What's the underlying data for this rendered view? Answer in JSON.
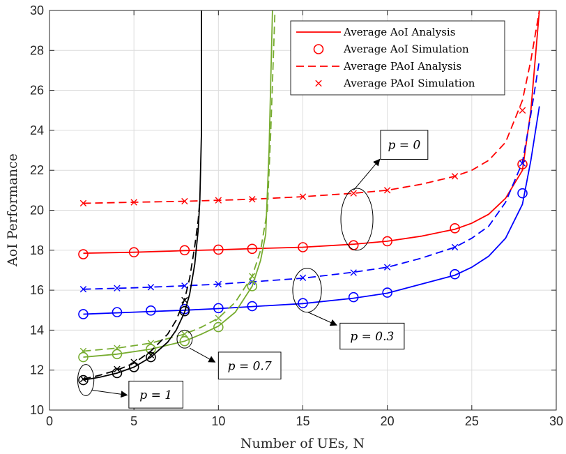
{
  "chart_data": {
    "type": "line",
    "xlabel": "Number of UEs, N",
    "ylabel": "AoI Performance",
    "xlim": [
      0,
      30
    ],
    "ylim": [
      10,
      30
    ],
    "xticks": [
      0,
      5,
      10,
      15,
      20,
      25,
      30
    ],
    "yticks": [
      10,
      12,
      14,
      16,
      18,
      20,
      22,
      24,
      26,
      28,
      30
    ],
    "grid": true,
    "legend": {
      "placement": "top-right",
      "entries": [
        {
          "label": "Average AoI Analysis",
          "style": "solid-line"
        },
        {
          "label": "Average AoI Simulation",
          "style": "circle-marker"
        },
        {
          "label": "Average PAoI Analysis",
          "style": "dashed-line"
        },
        {
          "label": "Average PAoI Simulation",
          "style": "x-marker"
        }
      ]
    },
    "colors": {
      "p0": "#ff0000",
      "p03": "#0000ff",
      "p07": "#77ac30",
      "p1": "#000000"
    },
    "series": [
      {
        "group": "p0",
        "kind": "aoi-analysis",
        "color": "#ff0000",
        "x": [
          2,
          5,
          8,
          10,
          12,
          15,
          18,
          20,
          22,
          24,
          25,
          26,
          27,
          28,
          28.5,
          29
        ],
        "y": [
          17.85,
          17.9,
          17.98,
          18.02,
          18.08,
          18.15,
          18.3,
          18.45,
          18.7,
          19.05,
          19.35,
          19.8,
          20.6,
          22.0,
          25.0,
          30.0
        ]
      },
      {
        "group": "p0",
        "kind": "aoi-simulation",
        "color": "#ff0000",
        "x": [
          2,
          5,
          8,
          10,
          12,
          15,
          18,
          20,
          24,
          28
        ],
        "y": [
          17.8,
          17.9,
          18.0,
          18.03,
          18.07,
          18.15,
          18.25,
          18.45,
          19.1,
          22.3
        ]
      },
      {
        "group": "p0",
        "kind": "paoi-analysis",
        "color": "#ff0000",
        "x": [
          2,
          5,
          8,
          10,
          12,
          15,
          18,
          20,
          22,
          24,
          25,
          26,
          27,
          28,
          28.5,
          29
        ],
        "y": [
          20.35,
          20.4,
          20.45,
          20.5,
          20.55,
          20.68,
          20.85,
          21.0,
          21.3,
          21.7,
          22.0,
          22.5,
          23.4,
          25.5,
          27.5,
          30.0
        ]
      },
      {
        "group": "p0",
        "kind": "paoi-simulation",
        "color": "#ff0000",
        "x": [
          2,
          5,
          8,
          10,
          12,
          15,
          18,
          20,
          24,
          28
        ],
        "y": [
          20.35,
          20.4,
          20.45,
          20.5,
          20.55,
          20.68,
          20.85,
          21.0,
          21.7,
          25.0
        ]
      },
      {
        "group": "p03",
        "kind": "aoi-analysis",
        "color": "#0000ff",
        "x": [
          2,
          5,
          8,
          10,
          12,
          15,
          18,
          20,
          22,
          24,
          25,
          26,
          27,
          28,
          28.5,
          29
        ],
        "y": [
          14.8,
          14.9,
          15.0,
          15.08,
          15.18,
          15.33,
          15.6,
          15.85,
          16.3,
          16.75,
          17.15,
          17.7,
          18.6,
          20.3,
          22.5,
          25.2
        ]
      },
      {
        "group": "p03",
        "kind": "aoi-simulation",
        "color": "#0000ff",
        "x": [
          2,
          4,
          6,
          8,
          10,
          12,
          15,
          18,
          20,
          24,
          28
        ],
        "y": [
          14.8,
          14.9,
          14.98,
          15.05,
          15.1,
          15.2,
          15.35,
          15.65,
          15.88,
          16.8,
          20.85
        ]
      },
      {
        "group": "p03",
        "kind": "paoi-analysis",
        "color": "#0000ff",
        "x": [
          2,
          5,
          8,
          10,
          12,
          15,
          18,
          20,
          22,
          24,
          25,
          26,
          27,
          28,
          28.5,
          29
        ],
        "y": [
          16.05,
          16.12,
          16.22,
          16.3,
          16.42,
          16.6,
          16.9,
          17.15,
          17.6,
          18.15,
          18.6,
          19.2,
          20.4,
          22.4,
          24.8,
          27.5
        ]
      },
      {
        "group": "p03",
        "kind": "paoi-simulation",
        "color": "#0000ff",
        "x": [
          2,
          4,
          6,
          8,
          10,
          12,
          15,
          18,
          20,
          24,
          28
        ],
        "y": [
          16.05,
          16.1,
          16.15,
          16.22,
          16.3,
          16.42,
          16.62,
          16.88,
          17.15,
          18.15,
          22.35
        ]
      },
      {
        "group": "p07",
        "kind": "aoi-analysis",
        "color": "#77ac30",
        "x": [
          2,
          4,
          6,
          8,
          9,
          10,
          11,
          12,
          12.5,
          12.8,
          13.0,
          13.2
        ],
        "y": [
          12.65,
          12.8,
          13.05,
          13.45,
          13.8,
          14.2,
          14.9,
          16.2,
          17.5,
          18.8,
          23.0,
          30.0
        ]
      },
      {
        "group": "p07",
        "kind": "aoi-simulation",
        "color": "#77ac30",
        "x": [
          2,
          4,
          6,
          8,
          10,
          12
        ],
        "y": [
          12.65,
          12.8,
          13.05,
          13.45,
          14.15,
          16.2
        ]
      },
      {
        "group": "p07",
        "kind": "paoi-analysis",
        "color": "#77ac30",
        "x": [
          2,
          4,
          6,
          8,
          9,
          10,
          11,
          12,
          12.5,
          12.9,
          13.1,
          13.35
        ],
        "y": [
          12.95,
          13.1,
          13.35,
          13.8,
          14.15,
          14.6,
          15.4,
          16.7,
          18.0,
          20.0,
          24.0,
          30.0
        ]
      },
      {
        "group": "p07",
        "kind": "paoi-simulation",
        "color": "#77ac30",
        "x": [
          2,
          4,
          6,
          8,
          10,
          12
        ],
        "y": [
          12.95,
          13.1,
          13.35,
          13.8,
          14.6,
          16.7
        ]
      },
      {
        "group": "p1",
        "kind": "aoi-analysis",
        "color": "#000000",
        "x": [
          2,
          3,
          4,
          5,
          6,
          7,
          7.5,
          8,
          8.3,
          8.6,
          8.8,
          8.9,
          9.0,
          9.0
        ],
        "y": [
          11.5,
          11.65,
          11.85,
          12.15,
          12.65,
          13.4,
          14.0,
          14.9,
          15.8,
          17.3,
          19.0,
          20.5,
          24.0,
          30.0
        ]
      },
      {
        "group": "p1",
        "kind": "aoi-simulation",
        "color": "#000000",
        "x": [
          2,
          4,
          5,
          6,
          8
        ],
        "y": [
          11.5,
          11.85,
          12.15,
          12.65,
          14.95
        ]
      },
      {
        "group": "p1",
        "kind": "paoi-analysis",
        "color": "#000000",
        "x": [
          2,
          3,
          4,
          5,
          6,
          7,
          7.5,
          8,
          8.3,
          8.6,
          8.8,
          8.9
        ],
        "y": [
          11.55,
          11.75,
          12.0,
          12.35,
          12.95,
          13.8,
          14.5,
          15.55,
          16.6,
          18.2,
          19.5,
          20.5
        ]
      },
      {
        "group": "p1",
        "kind": "paoi-simulation",
        "color": "#000000",
        "x": [
          2,
          4,
          5,
          6,
          8
        ],
        "y": [
          11.55,
          12.05,
          12.4,
          12.75,
          15.5
        ]
      }
    ],
    "annotations": [
      {
        "label": "p = 0",
        "group": "p0"
      },
      {
        "label": "p = 0.3",
        "group": "p03"
      },
      {
        "label": "p = 0.7",
        "group": "p07"
      },
      {
        "label": "p = 1",
        "group": "p1"
      }
    ]
  }
}
